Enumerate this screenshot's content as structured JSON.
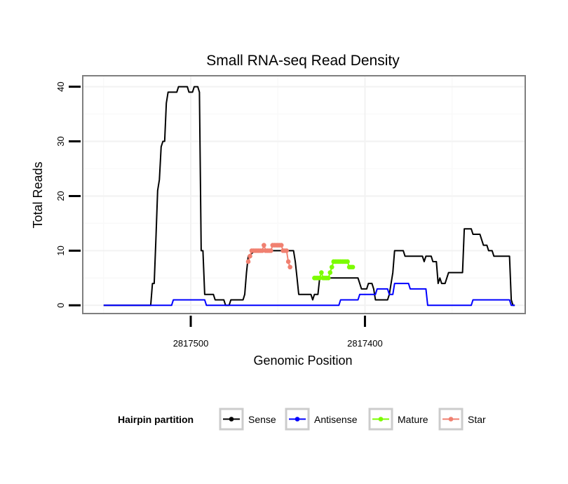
{
  "chart_data": {
    "type": "line",
    "title": "Small RNA-seq Read Density",
    "xlabel": "Genomic Position",
    "ylabel": "Total Reads",
    "x_reversed": true,
    "xlim": [
      2817562,
      2817308
    ],
    "ylim": [
      -1.5,
      42
    ],
    "x_ticks": [
      2817500,
      2817400
    ],
    "x_tick_labels": [
      "2817500",
      "2817400"
    ],
    "y_ticks": [
      0,
      10,
      20,
      30,
      40
    ],
    "y_tick_labels": [
      "0",
      "10",
      "20",
      "30",
      "40"
    ],
    "legend": {
      "title": "Hairpin partition",
      "position": "bottom",
      "entries": [
        "Sense",
        "Antisense",
        "Mature",
        "Star"
      ]
    },
    "series": [
      {
        "name": "Sense",
        "color": "#000000",
        "points": [
          [
            2817550,
            0
          ],
          [
            2817523,
            0
          ],
          [
            2817522,
            4
          ],
          [
            2817521,
            4
          ],
          [
            2817520,
            12
          ],
          [
            2817519,
            21
          ],
          [
            2817518,
            23
          ],
          [
            2817517,
            29
          ],
          [
            2817516,
            30
          ],
          [
            2817515,
            30
          ],
          [
            2817514,
            37
          ],
          [
            2817513,
            39
          ],
          [
            2817509,
            39
          ],
          [
            2817508,
            39
          ],
          [
            2817507,
            40
          ],
          [
            2817502,
            40
          ],
          [
            2817501,
            39
          ],
          [
            2817499,
            39
          ],
          [
            2817498,
            40
          ],
          [
            2817496,
            40
          ],
          [
            2817495,
            39
          ],
          [
            2817494,
            10
          ],
          [
            2817493,
            10
          ],
          [
            2817492,
            2
          ],
          [
            2817487,
            2
          ],
          [
            2817486,
            1
          ],
          [
            2817481,
            1
          ],
          [
            2817480,
            0
          ],
          [
            2817478,
            0
          ],
          [
            2817477,
            1
          ],
          [
            2817470,
            1
          ],
          [
            2817469,
            2
          ],
          [
            2817468,
            6
          ],
          [
            2817467,
            9
          ],
          [
            2817463,
            10
          ],
          [
            2817441,
            10
          ],
          [
            2817440,
            8
          ],
          [
            2817439,
            5
          ],
          [
            2817438,
            2
          ],
          [
            2817431,
            2
          ],
          [
            2817430,
            1
          ],
          [
            2817429,
            2
          ],
          [
            2817427,
            2
          ],
          [
            2817426,
            5
          ],
          [
            2817404,
            5
          ],
          [
            2817403,
            4
          ],
          [
            2817402,
            3
          ],
          [
            2817399,
            3
          ],
          [
            2817398,
            4
          ],
          [
            2817396,
            4
          ],
          [
            2817395,
            3
          ],
          [
            2817394,
            1
          ],
          [
            2817387,
            1
          ],
          [
            2817386,
            2
          ],
          [
            2817385,
            4
          ],
          [
            2817384,
            6
          ],
          [
            2817383,
            10
          ],
          [
            2817378,
            10
          ],
          [
            2817377,
            9
          ],
          [
            2817367,
            9
          ],
          [
            2817366,
            8
          ],
          [
            2817365,
            9
          ],
          [
            2817362,
            9
          ],
          [
            2817361,
            8
          ],
          [
            2817359,
            8
          ],
          [
            2817358,
            4
          ],
          [
            2817357,
            5
          ],
          [
            2817356,
            4
          ],
          [
            2817354,
            4
          ],
          [
            2817353,
            5
          ],
          [
            2817352,
            6
          ],
          [
            2817344,
            6
          ],
          [
            2817343,
            14
          ],
          [
            2817339,
            14
          ],
          [
            2817338,
            13
          ],
          [
            2817334,
            13
          ],
          [
            2817333,
            12
          ],
          [
            2817332,
            11
          ],
          [
            2817330,
            11
          ],
          [
            2817329,
            10
          ],
          [
            2817327,
            10
          ],
          [
            2817326,
            9
          ],
          [
            2817317,
            9
          ],
          [
            2817316,
            1
          ],
          [
            2817315,
            0
          ],
          [
            2817314,
            0
          ]
        ]
      },
      {
        "name": "Antisense",
        "color": "#0000ff",
        "points": [
          [
            2817550,
            0
          ],
          [
            2817511,
            0
          ],
          [
            2817510,
            1
          ],
          [
            2817492,
            1
          ],
          [
            2817491,
            0
          ],
          [
            2817415,
            0
          ],
          [
            2817414,
            1
          ],
          [
            2817404,
            1
          ],
          [
            2817403,
            2
          ],
          [
            2817394,
            2
          ],
          [
            2817393,
            3
          ],
          [
            2817387,
            3
          ],
          [
            2817386,
            2
          ],
          [
            2817384,
            2
          ],
          [
            2817383,
            4
          ],
          [
            2817375,
            4
          ],
          [
            2817374,
            3
          ],
          [
            2817365,
            3
          ],
          [
            2817364,
            0
          ],
          [
            2817339,
            0
          ],
          [
            2817338,
            1
          ],
          [
            2817317,
            1
          ],
          [
            2817316,
            0
          ],
          [
            2817314,
            0
          ]
        ]
      },
      {
        "name": "Mature",
        "color": "#7cfc00",
        "points": [
          [
            2817429,
            5
          ],
          [
            2817428,
            5
          ],
          [
            2817427,
            5
          ],
          [
            2817426,
            5
          ],
          [
            2817425,
            6
          ],
          [
            2817424,
            5
          ],
          [
            2817423,
            5
          ],
          [
            2817422,
            5
          ],
          [
            2817421,
            5
          ],
          [
            2817420,
            6
          ],
          [
            2817419,
            7
          ],
          [
            2817418,
            8
          ],
          [
            2817417,
            8
          ],
          [
            2817416,
            8
          ],
          [
            2817415,
            8
          ],
          [
            2817414,
            8
          ],
          [
            2817413,
            8
          ],
          [
            2817412,
            8
          ],
          [
            2817411,
            8
          ],
          [
            2817410,
            8
          ],
          [
            2817409,
            7
          ],
          [
            2817408,
            7
          ],
          [
            2817407,
            7
          ]
        ]
      },
      {
        "name": "Star",
        "color": "#f08070",
        "points": [
          [
            2817467,
            8
          ],
          [
            2817466,
            9
          ],
          [
            2817465,
            10
          ],
          [
            2817464,
            10
          ],
          [
            2817463,
            10
          ],
          [
            2817462,
            10
          ],
          [
            2817461,
            10
          ],
          [
            2817460,
            10
          ],
          [
            2817459,
            10
          ],
          [
            2817458,
            11
          ],
          [
            2817457,
            10
          ],
          [
            2817456,
            10
          ],
          [
            2817455,
            10
          ],
          [
            2817454,
            10
          ],
          [
            2817453,
            11
          ],
          [
            2817452,
            11
          ],
          [
            2817451,
            11
          ],
          [
            2817450,
            11
          ],
          [
            2817449,
            11
          ],
          [
            2817448,
            11
          ],
          [
            2817447,
            10
          ],
          [
            2817446,
            10
          ],
          [
            2817445,
            10
          ],
          [
            2817444,
            8
          ],
          [
            2817443,
            7
          ]
        ]
      }
    ],
    "styles": {
      "panel_border": "#7f7f7f",
      "grid_major": "#f2f2f2",
      "grid_minor": "#f9f9f9",
      "legend_key_border": "#cccccc"
    }
  }
}
